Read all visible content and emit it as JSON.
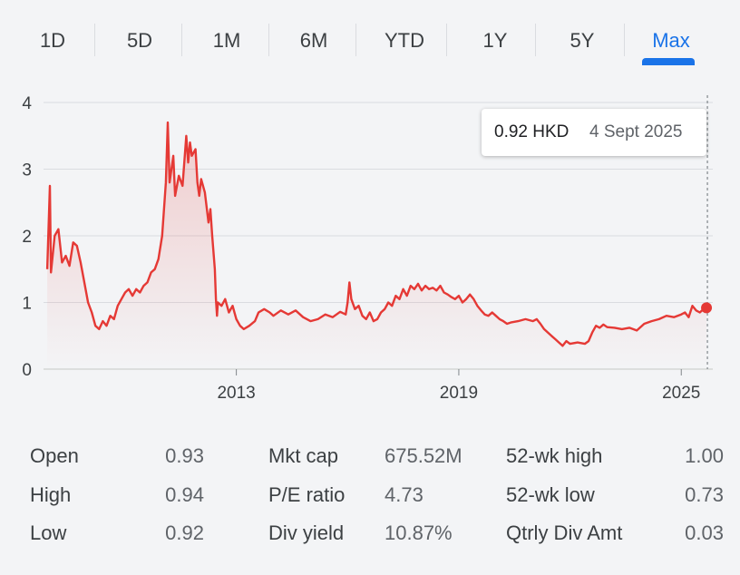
{
  "tabs": [
    {
      "label": "1D"
    },
    {
      "label": "5D"
    },
    {
      "label": "1M"
    },
    {
      "label": "6M"
    },
    {
      "label": "YTD"
    },
    {
      "label": "1Y"
    },
    {
      "label": "5Y"
    },
    {
      "label": "Max",
      "active": true
    }
  ],
  "colors": {
    "line": "#e53935",
    "accent": "#1a73e8",
    "grid": "#dadce0"
  },
  "tooltip": {
    "price": "0.92 HKD",
    "date": "4 Sept 2025"
  },
  "chart_data": {
    "type": "area",
    "yticks": [
      "0",
      "1",
      "2",
      "3",
      "4"
    ],
    "xticks": [
      {
        "label": "2013",
        "x": 2013
      },
      {
        "label": "2019",
        "x": 2019
      },
      {
        "label": "2025",
        "x": 2025
      }
    ],
    "ylim": [
      0,
      4
    ],
    "xlim": [
      2007.8,
      2025.85
    ],
    "grid": true,
    "series": [
      {
        "values": [
          [
            2007.9,
            1.5
          ],
          [
            2007.97,
            2.75
          ],
          [
            2008.0,
            1.45
          ],
          [
            2008.1,
            2.0
          ],
          [
            2008.2,
            2.1
          ],
          [
            2008.3,
            1.6
          ],
          [
            2008.4,
            1.7
          ],
          [
            2008.5,
            1.55
          ],
          [
            2008.6,
            1.9
          ],
          [
            2008.7,
            1.85
          ],
          [
            2008.8,
            1.6
          ],
          [
            2008.9,
            1.3
          ],
          [
            2009.0,
            1.0
          ],
          [
            2009.1,
            0.85
          ],
          [
            2009.2,
            0.65
          ],
          [
            2009.3,
            0.6
          ],
          [
            2009.4,
            0.72
          ],
          [
            2009.5,
            0.65
          ],
          [
            2009.6,
            0.8
          ],
          [
            2009.7,
            0.75
          ],
          [
            2009.8,
            0.95
          ],
          [
            2009.9,
            1.05
          ],
          [
            2010.0,
            1.15
          ],
          [
            2010.1,
            1.2
          ],
          [
            2010.2,
            1.1
          ],
          [
            2010.3,
            1.2
          ],
          [
            2010.4,
            1.15
          ],
          [
            2010.5,
            1.25
          ],
          [
            2010.6,
            1.3
          ],
          [
            2010.7,
            1.45
          ],
          [
            2010.8,
            1.5
          ],
          [
            2010.9,
            1.65
          ],
          [
            2011.0,
            2.0
          ],
          [
            2011.1,
            2.8
          ],
          [
            2011.15,
            3.7
          ],
          [
            2011.2,
            2.8
          ],
          [
            2011.3,
            3.2
          ],
          [
            2011.35,
            2.6
          ],
          [
            2011.45,
            2.9
          ],
          [
            2011.55,
            2.75
          ],
          [
            2011.65,
            3.5
          ],
          [
            2011.7,
            3.1
          ],
          [
            2011.75,
            3.4
          ],
          [
            2011.8,
            3.2
          ],
          [
            2011.9,
            3.3
          ],
          [
            2011.95,
            2.8
          ],
          [
            2012.0,
            2.6
          ],
          [
            2012.05,
            2.85
          ],
          [
            2012.15,
            2.65
          ],
          [
            2012.25,
            2.2
          ],
          [
            2012.3,
            2.4
          ],
          [
            2012.35,
            2.0
          ],
          [
            2012.42,
            1.5
          ],
          [
            2012.45,
            1.05
          ],
          [
            2012.48,
            0.8
          ],
          [
            2012.5,
            1.0
          ],
          [
            2012.6,
            0.95
          ],
          [
            2012.7,
            1.05
          ],
          [
            2012.8,
            0.85
          ],
          [
            2012.9,
            0.95
          ],
          [
            2013.0,
            0.75
          ],
          [
            2013.1,
            0.65
          ],
          [
            2013.2,
            0.6
          ],
          [
            2013.35,
            0.65
          ],
          [
            2013.5,
            0.72
          ],
          [
            2013.6,
            0.85
          ],
          [
            2013.75,
            0.9
          ],
          [
            2013.9,
            0.85
          ],
          [
            2014.0,
            0.8
          ],
          [
            2014.2,
            0.88
          ],
          [
            2014.4,
            0.82
          ],
          [
            2014.6,
            0.88
          ],
          [
            2014.8,
            0.78
          ],
          [
            2015.0,
            0.72
          ],
          [
            2015.2,
            0.75
          ],
          [
            2015.4,
            0.82
          ],
          [
            2015.6,
            0.78
          ],
          [
            2015.8,
            0.86
          ],
          [
            2015.95,
            0.82
          ],
          [
            2016.0,
            1.0
          ],
          [
            2016.05,
            1.3
          ],
          [
            2016.1,
            1.05
          ],
          [
            2016.2,
            0.9
          ],
          [
            2016.3,
            0.95
          ],
          [
            2016.4,
            0.8
          ],
          [
            2016.5,
            0.75
          ],
          [
            2016.6,
            0.85
          ],
          [
            2016.7,
            0.72
          ],
          [
            2016.8,
            0.75
          ],
          [
            2016.9,
            0.85
          ],
          [
            2017.0,
            0.9
          ],
          [
            2017.1,
            1.0
          ],
          [
            2017.2,
            0.95
          ],
          [
            2017.3,
            1.1
          ],
          [
            2017.4,
            1.05
          ],
          [
            2017.5,
            1.2
          ],
          [
            2017.6,
            1.1
          ],
          [
            2017.7,
            1.25
          ],
          [
            2017.8,
            1.2
          ],
          [
            2017.9,
            1.28
          ],
          [
            2018.0,
            1.18
          ],
          [
            2018.1,
            1.25
          ],
          [
            2018.2,
            1.2
          ],
          [
            2018.3,
            1.22
          ],
          [
            2018.4,
            1.18
          ],
          [
            2018.5,
            1.25
          ],
          [
            2018.6,
            1.15
          ],
          [
            2018.7,
            1.12
          ],
          [
            2018.8,
            1.08
          ],
          [
            2018.9,
            1.05
          ],
          [
            2019.0,
            1.1
          ],
          [
            2019.1,
            1.0
          ],
          [
            2019.2,
            1.05
          ],
          [
            2019.3,
            1.12
          ],
          [
            2019.4,
            1.05
          ],
          [
            2019.5,
            0.95
          ],
          [
            2019.6,
            0.88
          ],
          [
            2019.7,
            0.82
          ],
          [
            2019.8,
            0.8
          ],
          [
            2019.9,
            0.85
          ],
          [
            2020.0,
            0.8
          ],
          [
            2020.1,
            0.75
          ],
          [
            2020.2,
            0.72
          ],
          [
            2020.3,
            0.68
          ],
          [
            2020.4,
            0.7
          ],
          [
            2020.6,
            0.72
          ],
          [
            2020.8,
            0.75
          ],
          [
            2021.0,
            0.72
          ],
          [
            2021.1,
            0.75
          ],
          [
            2021.2,
            0.68
          ],
          [
            2021.3,
            0.6
          ],
          [
            2021.4,
            0.55
          ],
          [
            2021.5,
            0.5
          ],
          [
            2021.6,
            0.45
          ],
          [
            2021.7,
            0.4
          ],
          [
            2021.8,
            0.35
          ],
          [
            2021.9,
            0.42
          ],
          [
            2022.0,
            0.38
          ],
          [
            2022.2,
            0.4
          ],
          [
            2022.4,
            0.38
          ],
          [
            2022.5,
            0.42
          ],
          [
            2022.6,
            0.55
          ],
          [
            2022.7,
            0.65
          ],
          [
            2022.8,
            0.62
          ],
          [
            2022.9,
            0.67
          ],
          [
            2023.0,
            0.63
          ],
          [
            2023.2,
            0.62
          ],
          [
            2023.4,
            0.6
          ],
          [
            2023.6,
            0.62
          ],
          [
            2023.8,
            0.58
          ],
          [
            2024.0,
            0.68
          ],
          [
            2024.2,
            0.72
          ],
          [
            2024.4,
            0.75
          ],
          [
            2024.6,
            0.8
          ],
          [
            2024.8,
            0.78
          ],
          [
            2025.0,
            0.82
          ],
          [
            2025.1,
            0.85
          ],
          [
            2025.2,
            0.78
          ],
          [
            2025.3,
            0.95
          ],
          [
            2025.4,
            0.88
          ],
          [
            2025.5,
            0.85
          ],
          [
            2025.6,
            0.9
          ],
          [
            2025.68,
            0.92
          ]
        ]
      }
    ],
    "last_point": {
      "x": 2025.68,
      "y": 0.92
    }
  },
  "stats": [
    {
      "label": "Open",
      "value": "0.93"
    },
    {
      "label": "High",
      "value": "0.94"
    },
    {
      "label": "Low",
      "value": "0.92"
    },
    {
      "label": "Mkt cap",
      "value": "675.52M"
    },
    {
      "label": "P/E ratio",
      "value": "4.73"
    },
    {
      "label": "Div yield",
      "value": "10.87%"
    },
    {
      "label": "52-wk high",
      "value": "1.00"
    },
    {
      "label": "52-wk low",
      "value": "0.73"
    },
    {
      "label": "Qtrly Div Amt",
      "value": "0.03"
    }
  ]
}
